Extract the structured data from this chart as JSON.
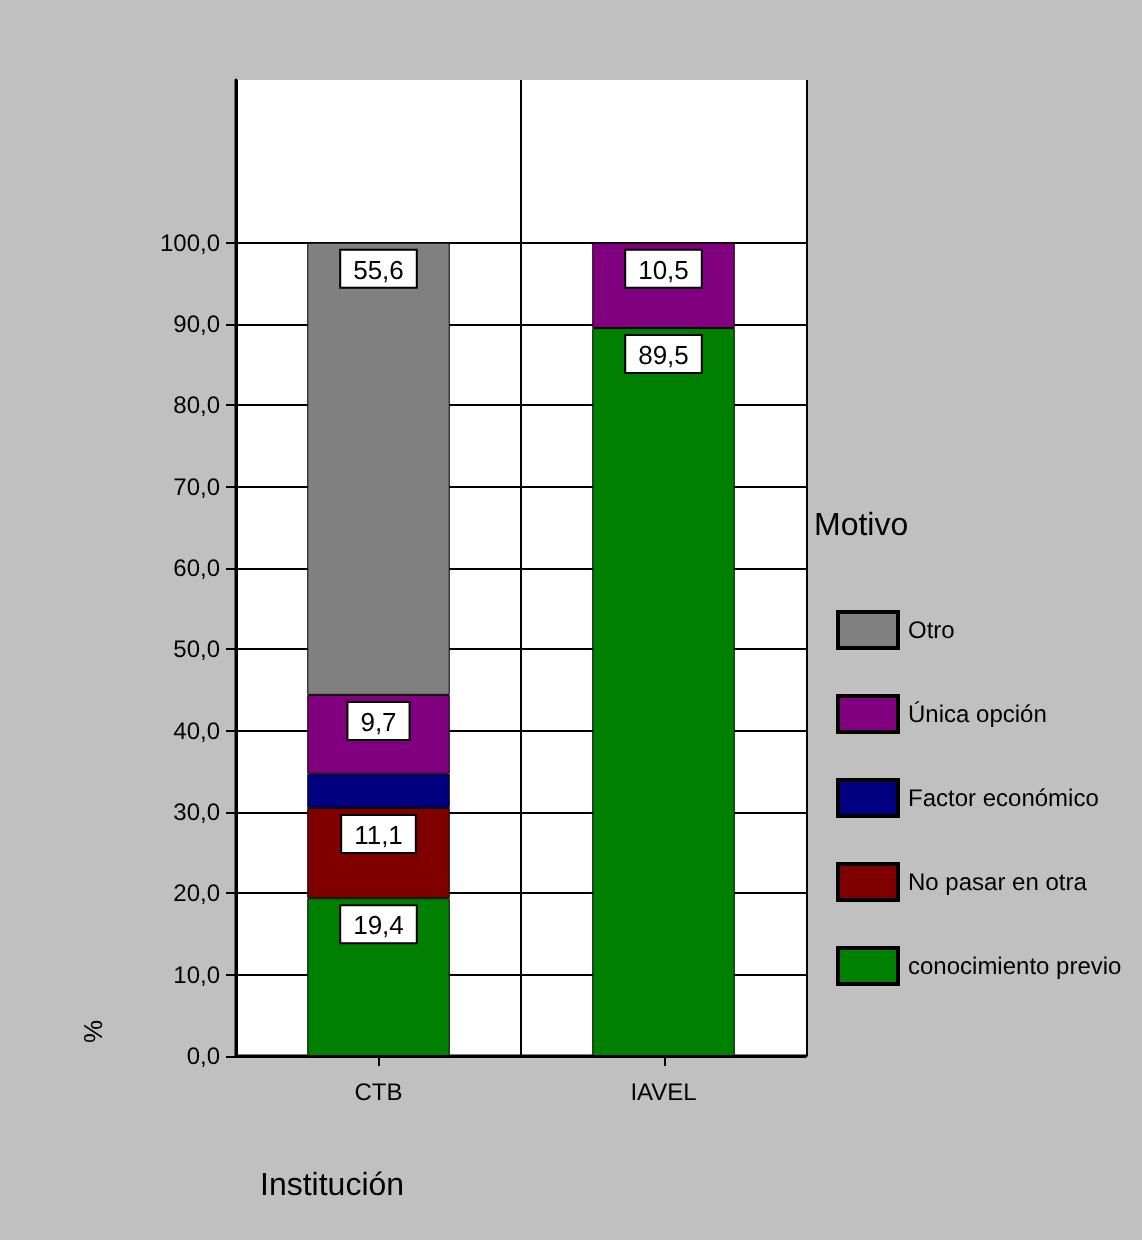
{
  "chart_data": {
    "type": "bar",
    "stacked": true,
    "categories": [
      "CTB",
      "IAVEL"
    ],
    "series": [
      {
        "name": "conocimiento previo",
        "color": "#008000",
        "values": [
          19.4,
          89.5
        ],
        "value_labels": [
          "19,4",
          "89,5"
        ]
      },
      {
        "name": "No pasar en otra",
        "color": "#800000",
        "values": [
          11.1,
          null
        ],
        "value_labels": [
          "11,1",
          null
        ]
      },
      {
        "name": "Factor económico",
        "color": "#000080",
        "values": [
          4.2,
          null
        ],
        "value_labels": [
          null,
          null
        ]
      },
      {
        "name": "Única opción",
        "color": "#800080",
        "values": [
          9.7,
          10.5
        ],
        "value_labels": [
          "9,7",
          "10,5"
        ]
      },
      {
        "name": "Otro",
        "color": "#808080",
        "values": [
          55.6,
          null
        ],
        "value_labels": [
          "55,6",
          null
        ]
      }
    ],
    "ylim": [
      0,
      120
    ],
    "yticks": [
      {
        "value": 0,
        "label": "0,0"
      },
      {
        "value": 10,
        "label": "10,0"
      },
      {
        "value": 20,
        "label": "20,0"
      },
      {
        "value": 30,
        "label": "30,0"
      },
      {
        "value": 40,
        "label": "40,0"
      },
      {
        "value": 50,
        "label": "50,0"
      },
      {
        "value": 60,
        "label": "60,0"
      },
      {
        "value": 70,
        "label": "70,0"
      },
      {
        "value": 80,
        "label": "80,0"
      },
      {
        "value": 90,
        "label": "90,0"
      },
      {
        "value": 100,
        "label": "100,0"
      }
    ],
    "xlabel": "Institución",
    "ylabel": "%",
    "legend_title": "Motivo",
    "legend": "right",
    "grid": true
  }
}
